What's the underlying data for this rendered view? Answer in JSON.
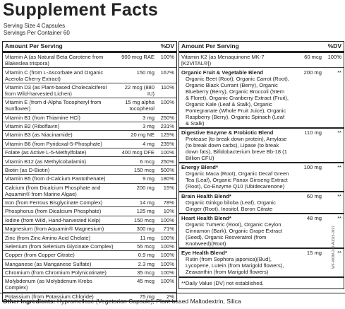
{
  "header": {
    "title": "Supplement Facts",
    "serving_size": "Serving Size 4 Capsules",
    "servings_per_container": "Servings Per Container 60"
  },
  "left_column": {
    "header": {
      "amount": "Amount Per Serving",
      "dv": "%DV"
    },
    "rows": [
      {
        "name": "Vitamin A (as Natural Beta Carotene from Blakeslea trispora)",
        "amount": "900 mcg RAE",
        "dv": "100%"
      },
      {
        "name": "Vitamin C (from L-Ascorbate and Organic Acerola Cherry Extract)",
        "amount": "150 mg",
        "dv": "167%"
      },
      {
        "name": "Vitamin D3 (as Plant-based Cholecalciferol from Wild-harvested Lichen)",
        "amount": "22 mcg (880 IU)",
        "dv": "110%"
      },
      {
        "name": "Vitamin E (from d-Alpha Tocopheryl from Sunflower)",
        "amount": "15 mg alpha tocopherol",
        "dv": "100%"
      },
      {
        "name": "Vitamin B1 (from Thiamine HCl)",
        "amount": "3 mg",
        "dv": "250%"
      },
      {
        "name": "Vitamin B2 (Riboflavin)",
        "amount": "3 mg",
        "dv": "231%"
      },
      {
        "name": "Vitamin B3 (as Niacinamide)",
        "amount": "20 mg NE",
        "dv": "125%"
      },
      {
        "name": "Vitamin B6 (from Pyridoxal-5-Phosphate)",
        "amount": "4 mg",
        "dv": "235%"
      },
      {
        "name": "Folate (as Active L-5-Methylfolate)",
        "amount": "400 mcg DFE",
        "dv": "100%"
      },
      {
        "name": "Vitamin B12 (as Methylcobalamin)",
        "amount": "6 mcg",
        "dv": "250%"
      },
      {
        "name": "Biotin (as D-Biotin)",
        "amount": "150 mcg",
        "dv": "500%"
      },
      {
        "name": "Vitamin B5 (from d-Calcium Pantothenate)",
        "amount": "9 mg",
        "dv": "180%"
      },
      {
        "name": "Calcium (from Dicalcium Phosphate and Aquamin® from Marine Algae)",
        "amount": "200 mg",
        "dv": "15%"
      },
      {
        "name": "Iron (from Ferrous Bisglycinate Complex)",
        "amount": "14 mg",
        "dv": "78%"
      },
      {
        "name": "Phosphorus (from Dicalcium Phosphate)",
        "amount": "125 mg",
        "dv": "10%"
      },
      {
        "name": "Iodine (from Wild, Hand-harvested Kelp)",
        "amount": "150 mcg",
        "dv": "100%"
      },
      {
        "name": "Magnesium (from Aquamin® Magnesium)",
        "amount": "300 mg",
        "dv": "71%"
      },
      {
        "name": "Zinc (from Zinc Amino Acid Chelate)",
        "amount": "11 mg",
        "dv": "100%"
      },
      {
        "name": "Selenium (from Selenium Glycinate Complex)",
        "amount": "55 mcg",
        "dv": "100%"
      },
      {
        "name": "Copper (from Copper Citrate)",
        "amount": "0.9 mg",
        "dv": "100%"
      },
      {
        "name": "Manganese (as Manganese Sulfate)",
        "amount": "2.3 mg",
        "dv": "100%"
      },
      {
        "name": "Chromium (from Chromium Polynicotinate)",
        "amount": "35 mcg",
        "dv": "100%"
      },
      {
        "name": "Molybdenum (as Molybdenum Krebs Complex)",
        "amount": "45 mcg",
        "dv": "100%"
      },
      {
        "name": "Potassium (from Potassium Chloride)",
        "amount": "75 mg",
        "dv": "2%"
      }
    ]
  },
  "right_column": {
    "header": {
      "amount": "Amount Per Serving",
      "dv": "%DV"
    },
    "rows": [
      {
        "name": "Vitamin K2 (as Menaquinone MK-7 [K2VITAL®])",
        "amount": "60 mcg",
        "dv": "100%"
      },
      {
        "name": "Organic Fruit & Vegetable Blend",
        "amount": "200 mg",
        "dv": "**",
        "ingredients": "Organic Beet (Root), Organic Carrot (Root), Organic Black Currant (Berry), Organic Blueberry (Berry), Organic Broccoli (Stem & Floret), Organic Cranberry Extract (Fruit), Organic Kale (Leaf & Stalk), Organic Pomegranate (Whole Fruit Juice), Organic Raspberry (Berry), Organic Spinach (Leaf & Stalk)"
      },
      {
        "name": "Digestive Enzyme & Probiotic Blend",
        "amount": "110 mg",
        "dv": "**",
        "ingredients": "Protease (to break down protein), Amylase (to break down carbs), Lipase (to break down fats), Bifidobacterium breve Bb-18 (1 Billion CFU)"
      },
      {
        "name": "Energy Blend*",
        "amount": "100 mg",
        "dv": "**",
        "ingredients": "Organic Maca (Root), Organic Decaf Green Tea (Leaf), Organic Panax Ginseng Extract (Root), Co-Enzyme Q10 (Ubidecarenone)"
      },
      {
        "name": "Brain Health Blend*",
        "amount": "60 mg",
        "dv": "**",
        "ingredients": "Organic Ginkgo biloba (Leaf), Organic Ginger (Root), Inositol, Boron Citrate"
      },
      {
        "name": "Heart Health Blend*",
        "amount": "48 mg",
        "dv": "**",
        "ingredients": "Organic Tumeric (Root), Organic Ceylon Cinnamon (Bark), Organic Grape Extract (Seed), Organic Resveratrol (from Knotweed)(Root)"
      },
      {
        "name": "Eye Health Blend*",
        "amount": "15 mg",
        "dv": "**",
        "ingredients": "Rutin (from Sophora japonica)(Bud), Lycopene, Lutein (from Marigold flowers), Zeaxanthin (from Marigold flowers)"
      }
    ],
    "footnote": "**Daily Value (DV) not established."
  },
  "other_ingredients": {
    "label": "Other Ingredients:",
    "text": "Hypromellose (Vegetarian Capsule), Plant-based Maltodextrin, Silica"
  },
  "side_code": "WF-WOM-240-A0015-0927"
}
